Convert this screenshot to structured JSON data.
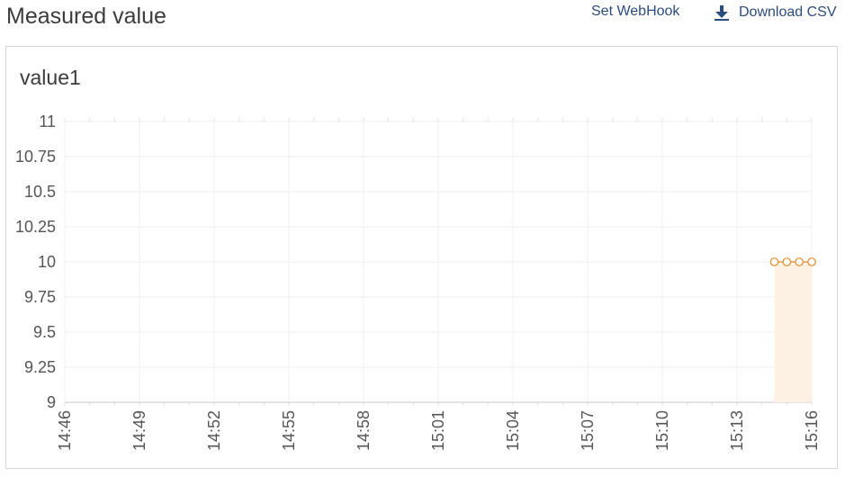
{
  "header": {
    "title": "Measured value",
    "webhook_label": "Set WebHook",
    "download_label": "Download CSV",
    "download_icon": "download-icon"
  },
  "card": {
    "title": "value1"
  },
  "chart_data": {
    "type": "area",
    "title": "value1",
    "xlabel": "",
    "ylabel": "",
    "ylim": [
      9,
      11
    ],
    "x_ticks": [
      "14:46",
      "14:49",
      "14:52",
      "14:55",
      "14:58",
      "15:01",
      "15:04",
      "15:07",
      "15:10",
      "15:13",
      "15:16"
    ],
    "y_ticks": [
      "9",
      "9.25",
      "9.5",
      "9.75",
      "10",
      "10.25",
      "10.5",
      "10.75",
      "11"
    ],
    "series": [
      {
        "x": [
          "15:14:30",
          "15:15:00",
          "15:15:30",
          "15:16:00"
        ],
        "values": [
          10,
          10,
          10,
          10
        ],
        "color": "#e08a2c",
        "fill_color": "#fdf1e3"
      }
    ],
    "grid": true,
    "legend": "none"
  }
}
